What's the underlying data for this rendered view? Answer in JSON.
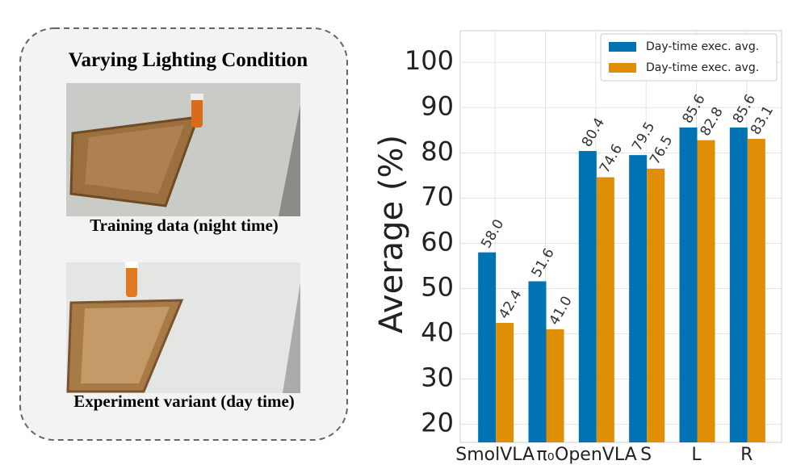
{
  "panel": {
    "title": "Varying Lighting Condition",
    "captions": [
      "Training data (night time)",
      "Experiment variant (day time)"
    ]
  },
  "chart_data": {
    "type": "bar",
    "ylabel": "Average (%)",
    "categories": [
      "SmolVLA",
      "π₀",
      "OpenVLA",
      "S",
      "L",
      "R"
    ],
    "series": [
      {
        "name": "Day-time exec. avg.",
        "color": "#0173b2",
        "values": [
          58.0,
          51.6,
          80.4,
          79.5,
          85.6,
          85.6
        ],
        "value_labels": [
          "58.0",
          "51.6",
          "80.4",
          "79.5",
          "85.6",
          "85.6"
        ]
      },
      {
        "name": "Day-time exec. avg.",
        "color": "#de8f05",
        "values": [
          42.4,
          41.0,
          74.6,
          76.5,
          82.8,
          83.1
        ],
        "value_labels": [
          "42.4",
          "41.0",
          "74.6",
          "76.5",
          "82.8",
          "83.1"
        ]
      }
    ],
    "ylim": [
      16,
      107
    ],
    "yticks": [
      20,
      30,
      40,
      50,
      60,
      70,
      80,
      90,
      100
    ],
    "grid": true,
    "legend": "upper right"
  }
}
